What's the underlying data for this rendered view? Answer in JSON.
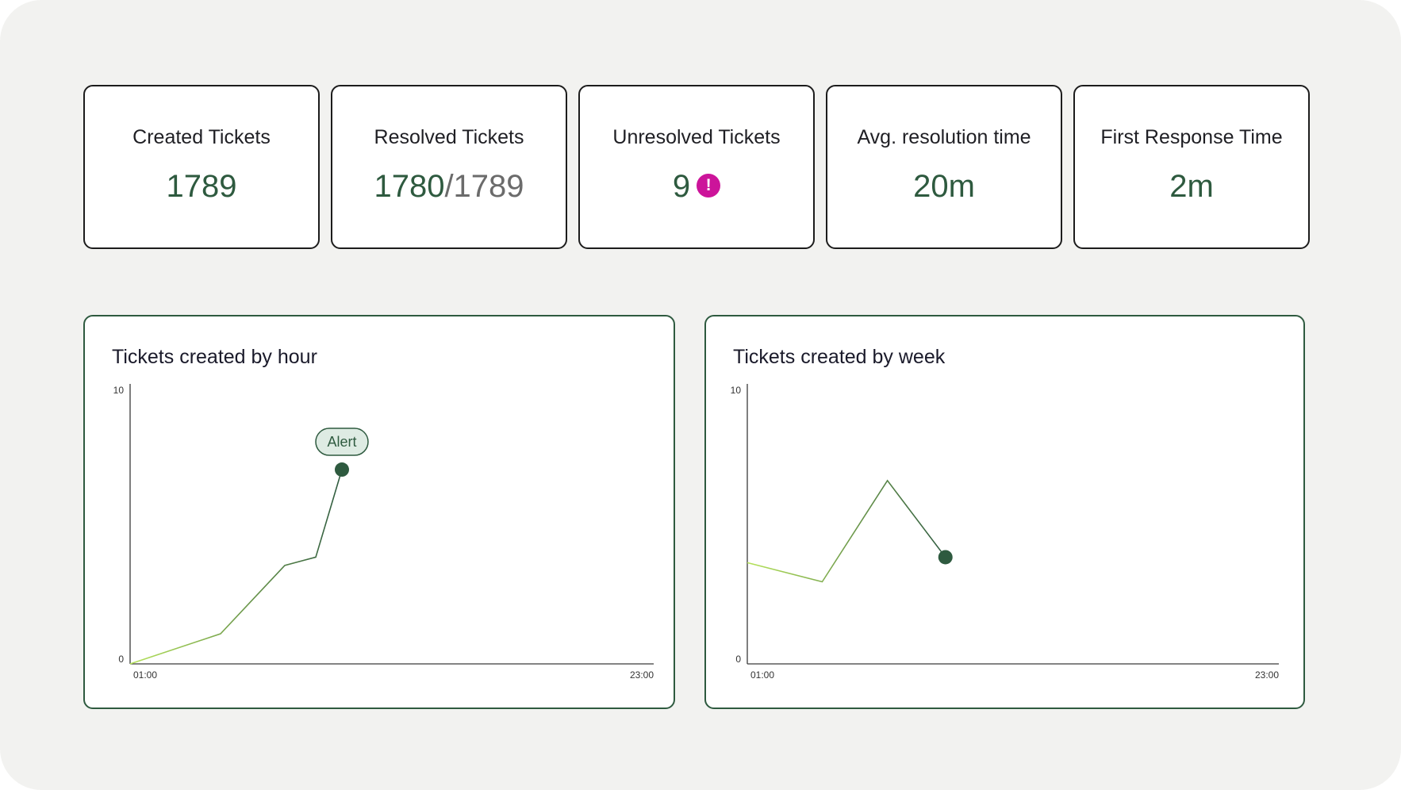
{
  "stats": [
    {
      "label": "Created Tickets",
      "value": "1789"
    },
    {
      "label": "Resolved Tickets",
      "value": "1780",
      "total": "/1789"
    },
    {
      "label": "Unresolved Tickets",
      "value": "9",
      "badge": "!"
    },
    {
      "label": "Avg. resolution time",
      "value": "20m"
    },
    {
      "label": "First Response Time",
      "value": "2m"
    }
  ],
  "colors": {
    "background": "#f2f2f0",
    "accent": "#2e5a3f",
    "line_start": "#b6e35a",
    "alert": "#cc149a",
    "callout_fill": "#deebe3"
  },
  "chart_data": [
    {
      "type": "line",
      "title": "Tickets created by hour",
      "x_tick_labels": [
        "01:00",
        "23:00"
      ],
      "y_tick_labels": [
        "0",
        "10"
      ],
      "xlim": [
        1,
        23
      ],
      "ylim": [
        0,
        10
      ],
      "x": [
        1,
        4.8,
        7.5,
        8.8,
        9.9
      ],
      "values": [
        0,
        1.1,
        3.6,
        3.9,
        7.1
      ],
      "grid": false,
      "annotation": {
        "text": "Alert",
        "at_point": 4
      }
    },
    {
      "type": "line",
      "title": "Tickets created by week",
      "x_tick_labels": [
        "01:00",
        "23:00"
      ],
      "y_tick_labels": [
        "0",
        "10"
      ],
      "xlim": [
        1,
        23
      ],
      "ylim": [
        0,
        10
      ],
      "x": [
        1,
        4.1,
        6.8,
        9.2
      ],
      "values": [
        3.7,
        3,
        6.7,
        3.9
      ],
      "grid": false
    }
  ]
}
